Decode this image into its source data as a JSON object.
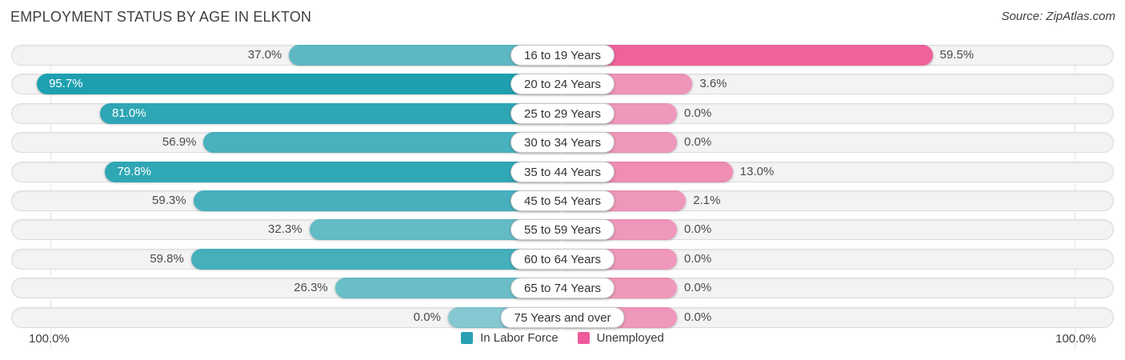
{
  "header": {
    "title": "EMPLOYMENT STATUS BY AGE IN ELKTON",
    "source": "Source: ZipAtlas.com"
  },
  "chart_data": {
    "type": "bar",
    "orientation": "bidirectional-horizontal",
    "title": "Employment Status by Age in Elkton",
    "categories": [
      "16 to 19 Years",
      "20 to 24 Years",
      "25 to 29 Years",
      "30 to 34 Years",
      "35 to 44 Years",
      "45 to 54 Years",
      "55 to 59 Years",
      "60 to 64 Years",
      "65 to 74 Years",
      "75 Years and over"
    ],
    "series": [
      {
        "name": "In Labor Force",
        "side": "left",
        "base_color_rgb": [
          26,
          158,
          174
        ],
        "values": [
          37.0,
          95.7,
          81.0,
          56.9,
          79.8,
          59.3,
          32.3,
          59.8,
          26.3,
          0.0
        ]
      },
      {
        "name": "Unemployed",
        "side": "right",
        "base_color_rgb": [
          236,
          62,
          130
        ],
        "values": [
          59.5,
          3.6,
          0.0,
          0.0,
          13.0,
          2.1,
          0.0,
          0.0,
          0.0,
          0.0
        ]
      }
    ],
    "value_suffix": "%",
    "xlim": [
      0,
      100
    ],
    "grid": false,
    "axis": {
      "left_max_label": "100.0%",
      "right_max_label": "100.0%"
    },
    "legend": {
      "position": "bottom-center",
      "items": [
        {
          "label": "In Labor Force",
          "color": "#29A0B1"
        },
        {
          "label": "Unemployed",
          "color": "#EE5A9B"
        }
      ]
    }
  }
}
